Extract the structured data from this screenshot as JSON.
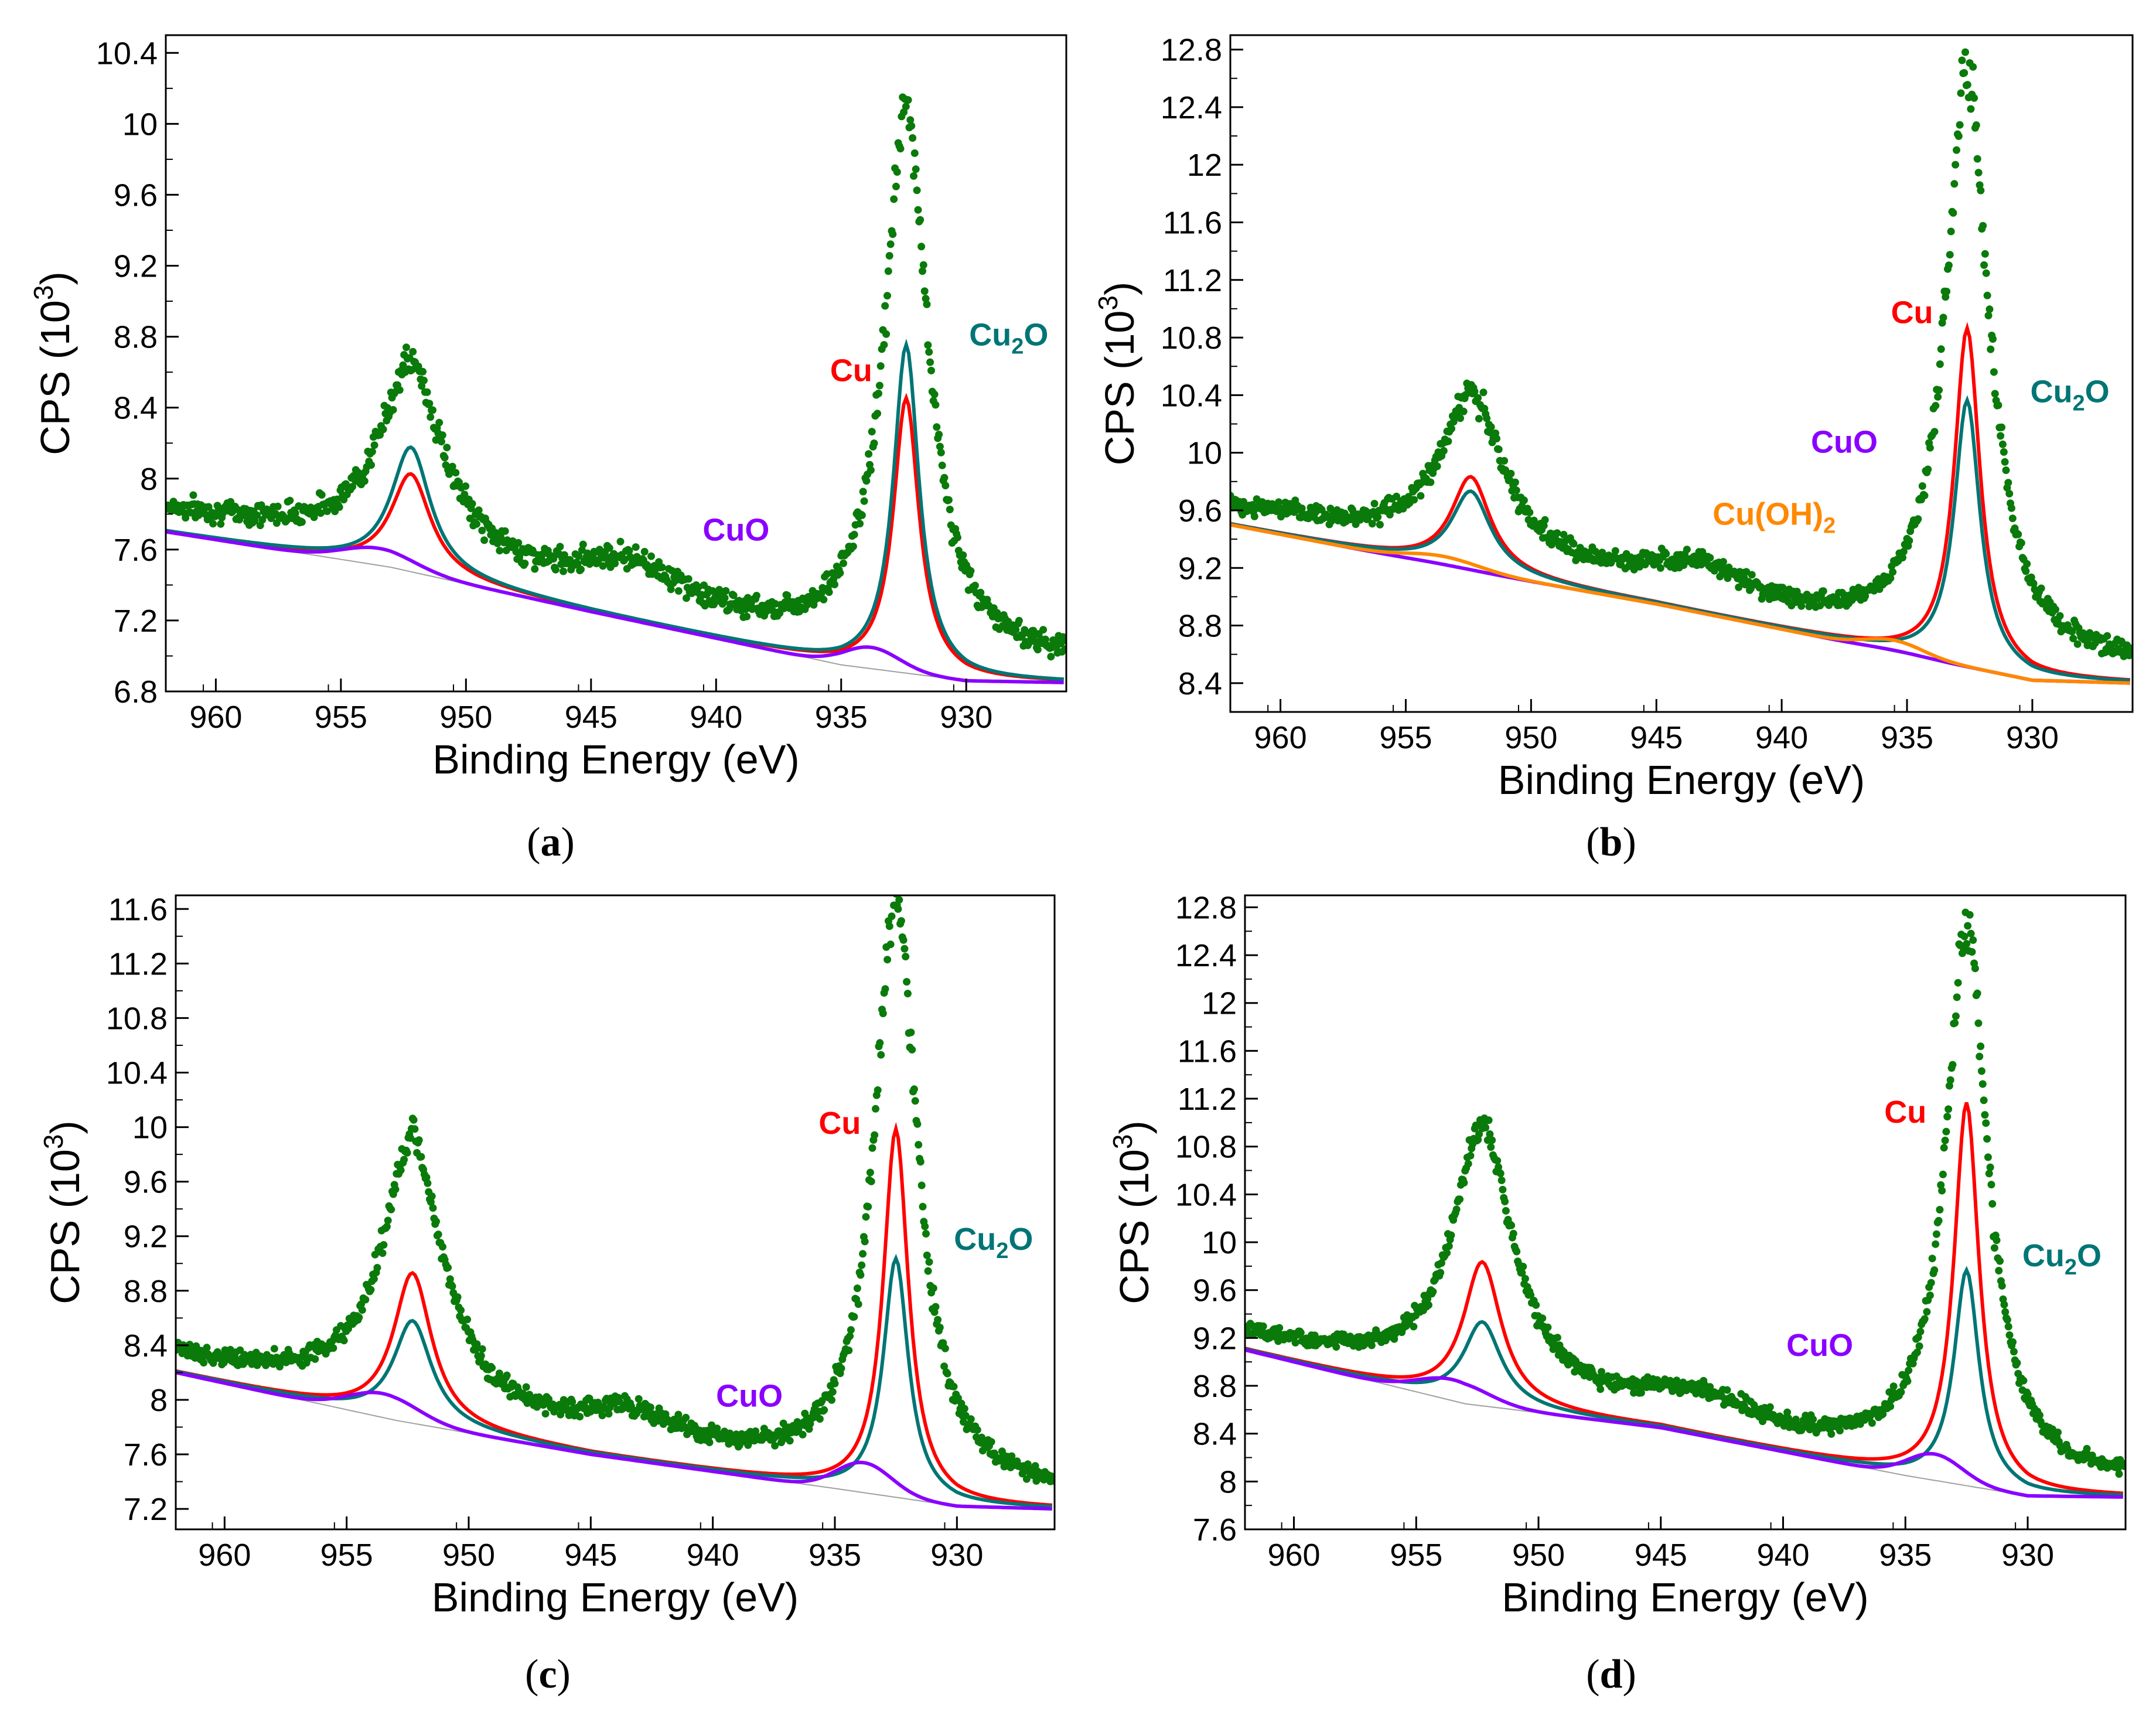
{
  "chart_data": [
    {
      "id": "a",
      "type": "scatter",
      "panel_label": "a",
      "xlabel": "Binding Energy (eV)",
      "ylabel": "CPS (10^3)",
      "xlim": [
        962,
        926
      ],
      "ylim": [
        6.8,
        10.5
      ],
      "xticks": [
        960,
        955,
        950,
        945,
        940,
        935,
        930
      ],
      "yticks": [
        6.8,
        7.2,
        7.6,
        8,
        8.4,
        8.8,
        9.2,
        9.6,
        10,
        10.4
      ],
      "peaks": {
        "main": {
          "center": 932.4,
          "height": 3.05
        },
        "sat": {
          "center": 952.2,
          "height": 1.05
        }
      },
      "background": {
        "x": [
          962,
          953,
          945,
          935,
          930,
          926
        ],
        "y": [
          7.7,
          7.5,
          7.25,
          6.95,
          6.86,
          6.85
        ]
      },
      "series": [
        {
          "name": "Cu",
          "color": "#ff0000",
          "main": 1.55,
          "sat": 0.55,
          "bump": 0,
          "bump_center": 933.8
        },
        {
          "name": "Cu2O",
          "color": "#007575",
          "main": 1.85,
          "sat": 0.7,
          "bump": 0,
          "bump_center": 933.8
        },
        {
          "name": "CuO",
          "color": "#8a00ff",
          "main": 0,
          "sat": 0,
          "bump": 0.12,
          "bump_center": 933.8
        }
      ],
      "labels": [
        {
          "text": "Cu",
          "sub": "",
          "tail": "",
          "color": "#ff0000",
          "x": 934.6,
          "y": 8.55
        },
        {
          "text": "Cu",
          "sub": "2",
          "tail": "O",
          "color": "#007575",
          "x": 928.3,
          "y": 8.75
        },
        {
          "text": "CuO",
          "sub": "",
          "tail": "",
          "color": "#8a00ff",
          "x": 939.2,
          "y": 7.65
        }
      ]
    },
    {
      "id": "b",
      "type": "scatter",
      "panel_label": "b",
      "xlabel": "Binding Energy (eV)",
      "ylabel": "CPS (10^3)",
      "xlim": [
        962,
        926
      ],
      "ylim": [
        8.2,
        12.9
      ],
      "xticks": [
        960,
        955,
        950,
        945,
        940,
        935,
        930
      ],
      "yticks": [
        8.4,
        8.8,
        9.2,
        9.6,
        10,
        10.4,
        10.8,
        11.2,
        11.6,
        12,
        12.4,
        12.8
      ],
      "peaks": {
        "main": {
          "center": 932.6,
          "height": 4.0
        },
        "sat": {
          "center": 952.4,
          "height": 1.1
        }
      },
      "background": {
        "x": [
          962,
          953,
          945,
          935,
          930,
          926
        ],
        "y": [
          9.5,
          9.2,
          8.95,
          8.6,
          8.42,
          8.4
        ]
      },
      "series": [
        {
          "name": "Cu",
          "color": "#ff0000",
          "main": 2.35,
          "sat": 0.65,
          "bump": 0,
          "bump_center": 935.5
        },
        {
          "name": "Cu2O",
          "color": "#007575",
          "main": 1.85,
          "sat": 0.55,
          "bump": 0,
          "bump_center": 935.5
        },
        {
          "name": "CuO",
          "color": "#8a00ff",
          "main": 0,
          "sat": 0,
          "bump": 0.01,
          "bump_center": 935.5
        },
        {
          "name": "Cu(OH)2",
          "color": "#ff8800",
          "main": 0,
          "sat": 0,
          "bump": 0.08,
          "bump_center": 935.5
        }
      ],
      "labels": [
        {
          "text": "Cu",
          "sub": "",
          "tail": "",
          "color": "#ff0000",
          "x": 934.8,
          "y": 10.9
        },
        {
          "text": "Cu",
          "sub": "2",
          "tail": "O",
          "color": "#007575",
          "x": 928.5,
          "y": 10.35
        },
        {
          "text": "CuO",
          "sub": "",
          "tail": "",
          "color": "#8a00ff",
          "x": 937.5,
          "y": 10.0
        },
        {
          "text": "Cu(OH)",
          "sub": "2",
          "tail": "",
          "color": "#ff8800",
          "x": 940.3,
          "y": 9.5
        }
      ]
    },
    {
      "id": "c",
      "type": "scatter",
      "panel_label": "c",
      "xlabel": "Binding Energy (eV)",
      "ylabel": "CPS (10^3)",
      "xlim": [
        962,
        926
      ],
      "ylim": [
        7.05,
        11.7
      ],
      "xticks": [
        960,
        955,
        950,
        945,
        940,
        935,
        930
      ],
      "yticks": [
        7.2,
        7.6,
        8,
        8.4,
        8.8,
        9.2,
        9.6,
        10,
        10.4,
        10.8,
        11.2,
        11.6
      ],
      "peaks": {
        "main": {
          "center": 932.5,
          "height": 4.3
        },
        "sat": {
          "center": 952.3,
          "height": 1.95
        }
      },
      "background": {
        "x": [
          962,
          953,
          945,
          935,
          930,
          926
        ],
        "y": [
          8.2,
          7.85,
          7.6,
          7.35,
          7.22,
          7.2
        ]
      },
      "series": [
        {
          "name": "Cu",
          "color": "#ff0000",
          "main": 2.7,
          "sat": 1.1,
          "bump": 0,
          "bump_center": 933.8
        },
        {
          "name": "Cu2O",
          "color": "#007575",
          "main": 1.75,
          "sat": 0.75,
          "bump": 0,
          "bump_center": 933.8
        },
        {
          "name": "CuO",
          "color": "#8a00ff",
          "main": 0,
          "sat": 0,
          "bump": 0.22,
          "bump_center": 933.8
        }
      ],
      "labels": [
        {
          "text": "Cu",
          "sub": "",
          "tail": "",
          "color": "#ff0000",
          "x": 934.8,
          "y": 9.95
        },
        {
          "text": "Cu",
          "sub": "2",
          "tail": "O",
          "color": "#007575",
          "x": 928.5,
          "y": 9.1
        },
        {
          "text": "CuO",
          "sub": "",
          "tail": "",
          "color": "#8a00ff",
          "x": 938.5,
          "y": 7.95
        }
      ]
    },
    {
      "id": "d",
      "type": "scatter",
      "panel_label": "d",
      "xlabel": "Binding Energy (eV)",
      "ylabel": "CPS (10^3)",
      "xlim": [
        962,
        926
      ],
      "ylim": [
        7.6,
        12.9
      ],
      "xticks": [
        960,
        955,
        950,
        945,
        940,
        935,
        930
      ],
      "yticks": [
        7.6,
        8,
        8.4,
        8.8,
        9.2,
        9.6,
        10,
        10.4,
        10.8,
        11.2,
        11.6,
        12,
        12.4,
        12.8
      ],
      "peaks": {
        "main": {
          "center": 932.5,
          "height": 4.55
        },
        "sat": {
          "center": 952.3,
          "height": 2.2
        }
      },
      "background": {
        "x": [
          962,
          953,
          945,
          935,
          930,
          926
        ],
        "y": [
          9.1,
          8.65,
          8.45,
          8.05,
          7.88,
          7.87
        ]
      },
      "series": [
        {
          "name": "Cu",
          "color": "#ff0000",
          "main": 3.2,
          "sat": 1.2,
          "bump": 0,
          "bump_center": 933.8
        },
        {
          "name": "Cu2O",
          "color": "#007575",
          "main": 1.8,
          "sat": 0.7,
          "bump": 0,
          "bump_center": 933.8
        },
        {
          "name": "CuO",
          "color": "#8a00ff",
          "main": 0,
          "sat": 0,
          "bump": 0.22,
          "bump_center": 933.8
        }
      ],
      "labels": [
        {
          "text": "Cu",
          "sub": "",
          "tail": "",
          "color": "#ff0000",
          "x": 935.0,
          "y": 11.0
        },
        {
          "text": "Cu",
          "sub": "2",
          "tail": "O",
          "color": "#007575",
          "x": 928.6,
          "y": 9.8
        },
        {
          "text": "CuO",
          "sub": "",
          "tail": "",
          "color": "#8a00ff",
          "x": 938.5,
          "y": 9.05
        }
      ]
    }
  ],
  "colors": {
    "data_points": "#0a7a0a",
    "background_line": "#a0a0a0"
  }
}
